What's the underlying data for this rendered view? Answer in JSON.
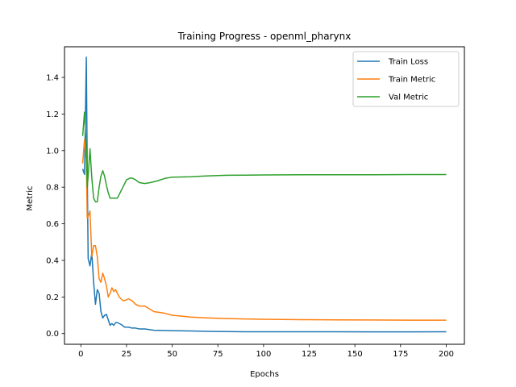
{
  "chart_data": {
    "type": "line",
    "title": "Training Progress - openml_pharynx",
    "xlabel": "Epochs",
    "ylabel": "Metric",
    "xlim": [
      -8.95,
      209.95
    ],
    "ylim": [
      -0.0585,
      1.5675
    ],
    "xticks": [
      0,
      25,
      50,
      75,
      100,
      125,
      150,
      175,
      200
    ],
    "yticks": [
      0.0,
      0.2,
      0.4,
      0.6,
      0.8,
      1.0,
      1.2,
      1.4
    ],
    "ytick_labels": [
      "0.0",
      "0.2",
      "0.4",
      "0.6",
      "0.8",
      "1.0",
      "1.2",
      "1.4"
    ],
    "grid": false,
    "legend_position": "upper right",
    "series": [
      {
        "name": "Train Loss",
        "color": "#1f77b4",
        "x": [
          1,
          2,
          3,
          3.5,
          4,
          5,
          6,
          7,
          8,
          9,
          10,
          11,
          12,
          13,
          14,
          15,
          16,
          17,
          18,
          19,
          20,
          21,
          22,
          24,
          26,
          28,
          30,
          32,
          35,
          40,
          45,
          50,
          60,
          70,
          80,
          90,
          100,
          120,
          140,
          160,
          180,
          200
        ],
        "y": [
          0.9,
          0.87,
          1.51,
          0.9,
          0.41,
          0.37,
          0.44,
          0.28,
          0.16,
          0.24,
          0.22,
          0.12,
          0.085,
          0.1,
          0.105,
          0.075,
          0.045,
          0.055,
          0.045,
          0.06,
          0.06,
          0.055,
          0.05,
          0.035,
          0.035,
          0.03,
          0.03,
          0.025,
          0.025,
          0.018,
          0.017,
          0.016,
          0.014,
          0.012,
          0.011,
          0.01,
          0.01,
          0.01,
          0.01,
          0.009,
          0.009,
          0.01
        ]
      },
      {
        "name": "Train Metric",
        "color": "#ff7f0e",
        "x": [
          1,
          2,
          3,
          3.5,
          4,
          5,
          6,
          7,
          8,
          9,
          10,
          11,
          12,
          13,
          14,
          15,
          16,
          17,
          18,
          19,
          20,
          21,
          22,
          23,
          24,
          26,
          28,
          30,
          32,
          35,
          40,
          45,
          50,
          60,
          70,
          80,
          90,
          100,
          120,
          140,
          160,
          180,
          200
        ],
        "y": [
          0.93,
          1.06,
          0.95,
          0.63,
          0.64,
          0.67,
          0.42,
          0.48,
          0.48,
          0.42,
          0.3,
          0.28,
          0.33,
          0.3,
          0.26,
          0.2,
          0.22,
          0.25,
          0.23,
          0.24,
          0.22,
          0.2,
          0.19,
          0.18,
          0.18,
          0.19,
          0.18,
          0.16,
          0.15,
          0.15,
          0.12,
          0.113,
          0.1,
          0.09,
          0.085,
          0.082,
          0.08,
          0.078,
          0.076,
          0.075,
          0.074,
          0.073,
          0.073
        ]
      },
      {
        "name": "Val Metric",
        "color": "#2ca02c",
        "x": [
          1,
          2,
          3,
          3.5,
          4,
          5,
          6,
          7,
          8,
          9,
          10,
          11,
          12,
          13,
          14,
          15,
          16,
          17,
          18,
          19,
          20,
          21,
          22,
          23,
          24,
          25,
          26,
          27,
          28,
          30,
          32,
          35,
          38,
          42,
          46,
          50,
          60,
          70,
          80,
          90,
          100,
          120,
          140,
          160,
          180,
          200
        ],
        "y": [
          1.08,
          1.21,
          1.0,
          0.8,
          0.86,
          1.01,
          0.85,
          0.74,
          0.72,
          0.72,
          0.8,
          0.86,
          0.89,
          0.86,
          0.81,
          0.77,
          0.74,
          0.74,
          0.74,
          0.74,
          0.74,
          0.76,
          0.78,
          0.8,
          0.82,
          0.84,
          0.845,
          0.85,
          0.85,
          0.84,
          0.825,
          0.82,
          0.825,
          0.835,
          0.848,
          0.855,
          0.857,
          0.862,
          0.865,
          0.866,
          0.867,
          0.868,
          0.868,
          0.868,
          0.869,
          0.869
        ]
      }
    ]
  }
}
